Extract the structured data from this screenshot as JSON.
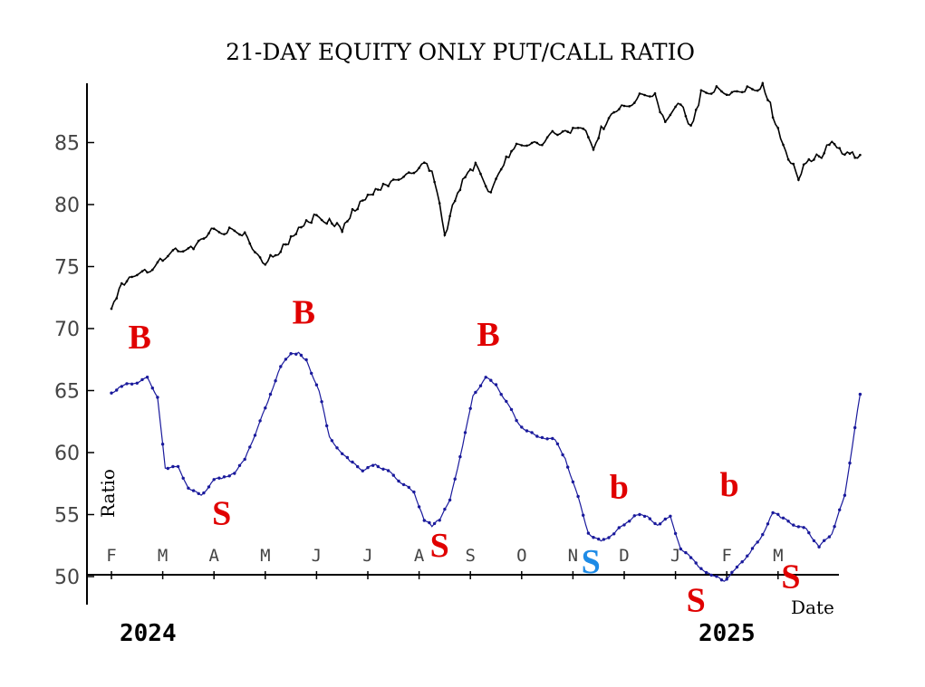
{
  "chart_data": {
    "type": "line",
    "title": "21-DAY EQUITY ONLY PUT/CALL RATIO",
    "ylabel": "Ratio",
    "xlabel": "Date",
    "ylim": [
      50,
      90
    ],
    "y_ticks": [
      "50",
      "55",
      "60",
      "65",
      "70",
      "75",
      "80",
      "85"
    ],
    "month_ticks": [
      "F",
      "M",
      "A",
      "M",
      "J",
      "J",
      "A",
      "S",
      "O",
      "N",
      "D",
      "J",
      "F",
      "M"
    ],
    "year_labels": [
      "2024",
      "2025"
    ],
    "grid": false,
    "x_range_months": [
      0,
      14.6
    ],
    "series": [
      {
        "color": "#000000",
        "x": [
          0.0,
          0.15,
          0.4,
          0.7,
          1.0,
          1.3,
          1.6,
          2.0,
          2.3,
          2.6,
          3.0,
          3.2,
          3.45,
          3.7,
          3.95,
          4.25,
          4.5,
          4.75,
          5.0,
          5.25,
          5.5,
          5.8,
          6.1,
          6.3,
          6.5,
          6.7,
          6.9,
          7.1,
          7.4,
          7.7,
          7.9,
          8.2,
          8.6,
          9.0,
          9.3,
          9.4,
          9.6,
          10.0,
          10.3,
          10.6,
          10.8,
          11.1,
          11.3,
          11.5,
          11.8,
          12.1,
          12.4,
          12.7,
          12.9,
          13.15,
          13.4,
          13.6,
          13.85,
          14.05,
          14.2,
          14.4,
          14.6
        ],
        "values": [
          71.6,
          73.0,
          74.1,
          74.9,
          75.6,
          76.2,
          76.8,
          77.9,
          78.1,
          77.3,
          75.2,
          75.8,
          76.8,
          78.0,
          78.8,
          78.9,
          78.2,
          79.6,
          80.5,
          81.1,
          81.8,
          82.8,
          83.3,
          82.1,
          77.6,
          80.5,
          82.6,
          83.3,
          81.0,
          83.5,
          84.6,
          84.9,
          85.6,
          86.2,
          85.6,
          84.4,
          86.5,
          88.0,
          88.8,
          88.6,
          86.6,
          88.4,
          86.4,
          88.9,
          89.6,
          88.7,
          89.3,
          89.8,
          87.4,
          84.3,
          82.1,
          83.6,
          83.8,
          85.0,
          84.5,
          84.2,
          84.0
        ]
      },
      {
        "color": "#1a1a9c",
        "x": [
          0.0,
          0.2,
          0.45,
          0.7,
          0.9,
          1.05,
          1.3,
          1.5,
          1.75,
          2.0,
          2.2,
          2.4,
          2.6,
          2.9,
          3.1,
          3.3,
          3.5,
          3.65,
          3.8,
          4.05,
          4.25,
          4.45,
          4.65,
          4.9,
          5.15,
          5.4,
          5.65,
          5.9,
          6.1,
          6.25,
          6.4,
          6.6,
          6.85,
          7.05,
          7.3,
          7.5,
          7.75,
          7.95,
          8.25,
          8.45,
          8.65,
          8.85,
          9.1,
          9.3,
          9.55,
          9.8,
          10.05,
          10.25,
          10.45,
          10.65,
          10.9,
          11.1,
          11.3,
          11.5,
          11.7,
          11.95,
          12.15,
          12.35,
          12.5,
          12.7,
          12.9,
          13.05,
          13.3,
          13.55,
          13.8,
          14.05,
          14.3,
          14.6
        ],
        "values": [
          64.8,
          65.4,
          65.6,
          66.0,
          64.5,
          58.8,
          58.8,
          57.2,
          56.5,
          57.8,
          58.0,
          58.4,
          59.4,
          62.5,
          64.7,
          67.0,
          67.9,
          68.0,
          67.4,
          65.0,
          61.2,
          60.2,
          59.3,
          58.6,
          59.0,
          58.5,
          57.6,
          56.8,
          54.6,
          54.1,
          54.6,
          56.1,
          60.6,
          64.5,
          66.1,
          65.4,
          63.8,
          62.2,
          61.4,
          61.2,
          61.0,
          59.5,
          56.4,
          53.5,
          52.8,
          53.5,
          54.4,
          55.0,
          54.8,
          54.2,
          54.8,
          52.3,
          51.5,
          50.6,
          50.2,
          49.6,
          50.6,
          51.3,
          52.2,
          53.4,
          55.2,
          54.8,
          54.2,
          53.8,
          52.4,
          53.5,
          56.5,
          64.7
        ]
      }
    ],
    "annotations": [
      {
        "text": "B",
        "color": "#e00000",
        "month": 0.55,
        "value": 68.4
      },
      {
        "text": "S",
        "color": "#e00000",
        "month": 2.15,
        "value": 54.2
      },
      {
        "text": "B",
        "color": "#e00000",
        "month": 3.75,
        "value": 70.4
      },
      {
        "text": "S",
        "color": "#e00000",
        "month": 6.4,
        "value": 51.6
      },
      {
        "text": "B",
        "color": "#e00000",
        "month": 7.35,
        "value": 68.6
      },
      {
        "text": "S",
        "color": "#1e8be6",
        "month": 9.35,
        "value": 50.3
      },
      {
        "text": "b",
        "color": "#e00000",
        "month": 9.9,
        "value": 56.3
      },
      {
        "text": "S",
        "color": "#e00000",
        "month": 11.4,
        "value": 47.2
      },
      {
        "text": "b",
        "color": "#e00000",
        "month": 12.05,
        "value": 56.5
      },
      {
        "text": "S",
        "color": "#e00000",
        "month": 13.25,
        "value": 49.1
      }
    ]
  }
}
